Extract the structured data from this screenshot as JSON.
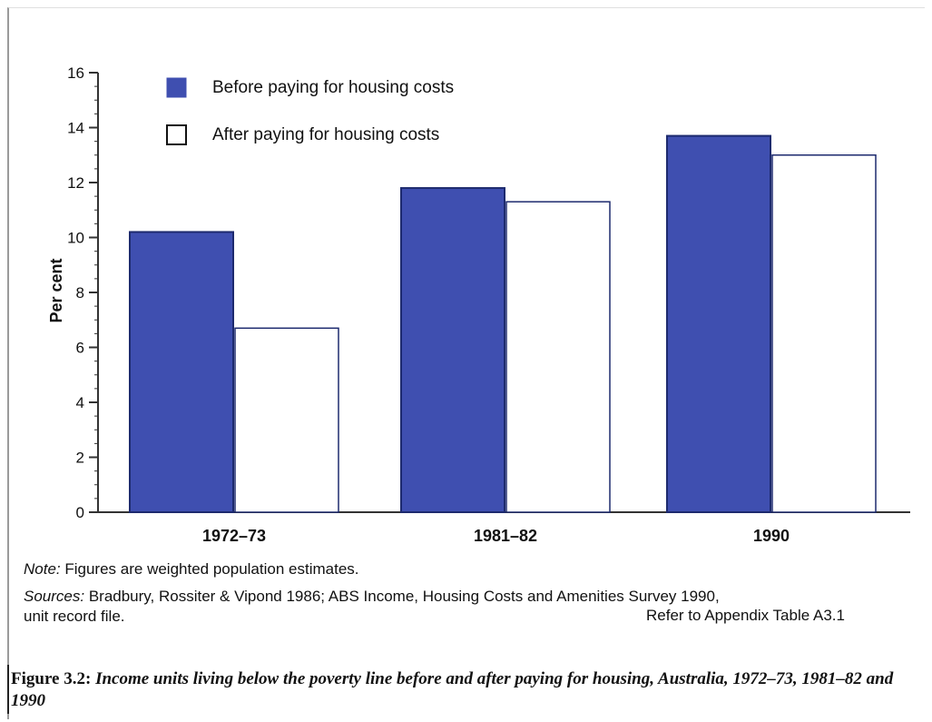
{
  "chart_data": {
    "type": "bar",
    "categories": [
      "1972–73",
      "1981–82",
      "1990"
    ],
    "series": [
      {
        "name": "Before paying for housing costs",
        "values": [
          10.2,
          11.8,
          13.7
        ]
      },
      {
        "name": "After paying for housing costs",
        "values": [
          6.7,
          11.3,
          13.0
        ]
      }
    ],
    "ylabel": "Per cent",
    "xlabel": "",
    "ylim": [
      0,
      16
    ],
    "yticks": [
      0,
      2,
      4,
      6,
      8,
      10,
      12,
      14,
      16
    ],
    "legend_position": "top-left",
    "grid": false
  },
  "colors": {
    "before": "#3f4fb0",
    "after": "#ffffff",
    "outline": "#1d2a6e",
    "axis": "#333333"
  },
  "notes": {
    "note_label": "Note:",
    "note_text": " Figures are weighted population estimates.",
    "sources_label": "Sources:",
    "sources_text": " Bradbury, Rossiter & Vipond 1986; ABS Income, Housing Costs and Amenities Survey 1990,",
    "sources_cont": "unit record file.",
    "refer": "Refer to Appendix Table A3.1"
  },
  "caption": {
    "figure_label": "Figure 3.2:",
    "text": " Income units living below the poverty line before and after paying for housing, Australia, 1972–73, 1981–82 and 1990"
  }
}
